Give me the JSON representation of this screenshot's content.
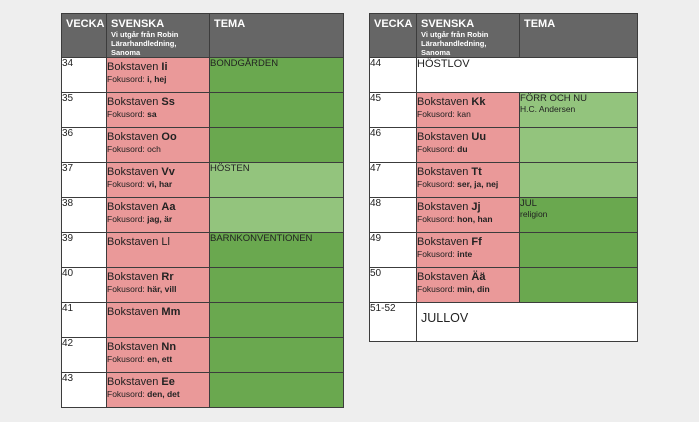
{
  "headers": {
    "vecka": "VECKA",
    "svenska": "SVENSKA",
    "svenska_sub1": "Vi utgår från Robin",
    "svenska_sub2": "Lärarhandledning, Sanoma",
    "tema": "TEMA"
  },
  "colors": {
    "header": "#666666",
    "svenska": "#ea9999",
    "tema_dark": "#6aa84f",
    "tema_light": "#93c47d"
  },
  "left": {
    "rows": [
      {
        "vecka": "34",
        "bok": "Bokstaven ",
        "bok_letter": "Ii",
        "fok": "Fokusord: ",
        "fok_words": "i, hej",
        "tema": "BONDGÅRDEN",
        "tema2": ""
      },
      {
        "vecka": "35",
        "bok": "Bokstaven ",
        "bok_letter": "Ss",
        "fok": "Fokusord: ",
        "fok_words": "sa",
        "tema": "",
        "tema2": ""
      },
      {
        "vecka": "36",
        "bok": "Bokstaven ",
        "bok_letter": "Oo",
        "fok": "Fokusord: och",
        "fok_words": "",
        "tema": "",
        "tema2": ""
      },
      {
        "vecka": "37",
        "bok": "Bokstaven ",
        "bok_letter": "Vv",
        "fok": "Fokusord: ",
        "fok_words": "vi, har",
        "tema": "HÖSTEN",
        "tema2": ""
      },
      {
        "vecka": "38",
        "bok": "Bokstaven ",
        "bok_letter": "Aa",
        "fok": "Fokusord: ",
        "fok_words": "jag, är",
        "tema": "",
        "tema2": ""
      },
      {
        "vecka": "39",
        "bok": "Bokstaven Ll",
        "bok_letter": "",
        "fok": "",
        "fok_words": "",
        "tema": "BARNKONVENTIONEN",
        "tema2": ""
      },
      {
        "vecka": "40",
        "bok": "Bokstaven ",
        "bok_letter": "Rr",
        "fok": "Fokusord: ",
        "fok_words": "här, vill",
        "tema": "",
        "tema2": ""
      },
      {
        "vecka": "41",
        "bok": "Bokstaven ",
        "bok_letter": "Mm",
        "fok": "",
        "fok_words": "",
        "tema": "",
        "tema2": ""
      },
      {
        "vecka": "42",
        "bok": "Bokstaven ",
        "bok_letter": "Nn",
        "fok": "Fokusord: ",
        "fok_words": "en, ett",
        "tema": "",
        "tema2": ""
      },
      {
        "vecka": "43",
        "bok": "Bokstaven ",
        "bok_letter": "Ee",
        "fok": "Fokusord: ",
        "fok_words": "den, det",
        "tema": "",
        "tema2": ""
      }
    ]
  },
  "right": {
    "hostlov": {
      "vecka": "44",
      "text": "HÖSTLOV"
    },
    "rows": [
      {
        "vecka": "45",
        "bok": "Bokstaven ",
        "bok_letter": "Kk",
        "fok": "Fokusord: kan",
        "fok_words": "",
        "tema": "FÖRR OCH NU",
        "tema2": "H.C. Andersen"
      },
      {
        "vecka": "46",
        "bok": "Bokstaven ",
        "bok_letter": "Uu",
        "fok": "Fokusord: ",
        "fok_words": "du",
        "tema": "",
        "tema2": ""
      },
      {
        "vecka": "47",
        "bok": "Bokstaven ",
        "bok_letter": "Tt",
        "fok": "Fokusord: ",
        "fok_words": "ser, ja, nej",
        "tema": "",
        "tema2": ""
      },
      {
        "vecka": "48",
        "bok": "Bokstaven ",
        "bok_letter": "Jj",
        "fok": "Fokusord: ",
        "fok_words": "hon, han",
        "tema": "JUL",
        "tema2": "religion"
      },
      {
        "vecka": "49",
        "bok": "Bokstaven ",
        "bok_letter": "Ff",
        "fok": "Fokusord: ",
        "fok_words": "inte",
        "tema": "",
        "tema2": ""
      },
      {
        "vecka": "50",
        "bok": "Bokstaven ",
        "bok_letter": "Ää",
        "fok": "Fokusord: ",
        "fok_words": "min, din",
        "tema": "",
        "tema2": ""
      }
    ],
    "jullov": {
      "vecka": "51-52",
      "text": "JULLOV"
    }
  }
}
